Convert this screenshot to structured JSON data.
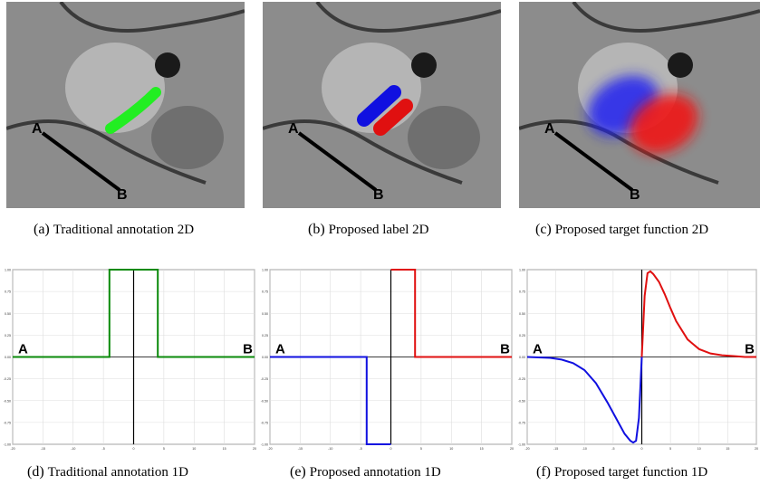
{
  "figure": {
    "top_row": [
      {
        "tag": "(a)",
        "caption": "Traditional annotation 2D",
        "point_a": "A",
        "point_b": "B"
      },
      {
        "tag": "(b)",
        "caption": "Proposed label 2D",
        "point_a": "A",
        "point_b": "B"
      },
      {
        "tag": "(c)",
        "caption": "Proposed target function 2D",
        "point_a": "A",
        "point_b": "B"
      }
    ],
    "bottom_row": [
      {
        "tag": "(d)",
        "caption": "Traditional annotation 1D",
        "point_a": "A",
        "point_b": "B"
      },
      {
        "tag": "(e)",
        "caption": "Proposed annotation 1D",
        "point_a": "A",
        "point_b": "B"
      },
      {
        "tag": "(f)",
        "caption": "Proposed target function 1D",
        "point_a": "A",
        "point_b": "B"
      }
    ]
  },
  "colors": {
    "green": "#0a8a0a",
    "blue": "#1010e0",
    "red": "#e01010",
    "annotation_green": "#22ee22"
  },
  "chart_data": [
    {
      "type": "line",
      "xlim": [
        -20,
        20
      ],
      "ylim": [
        -1,
        1
      ],
      "xticks": [
        -20,
        -15,
        -10,
        -5,
        0,
        5,
        10,
        15,
        20
      ],
      "yticks": [
        -1.0,
        -0.75,
        -0.5,
        -0.25,
        0.0,
        0.25,
        0.5,
        0.75,
        1.0
      ],
      "ytick_labels": [
        "-1.00",
        "-0.75",
        "-0.50",
        "-0.25",
        "0.00",
        "0.25",
        "0.50",
        "0.75",
        "1.00"
      ],
      "series": [
        {
          "color": "#0a8a0a",
          "x": [
            -20,
            -4,
            -4,
            4,
            4,
            20
          ],
          "y": [
            0,
            0,
            1,
            1,
            0,
            0
          ]
        }
      ]
    },
    {
      "type": "line",
      "xlim": [
        -20,
        20
      ],
      "ylim": [
        -1,
        1
      ],
      "xticks": [
        -20,
        -15,
        -10,
        -5,
        0,
        5,
        10,
        15,
        20
      ],
      "yticks": [
        -1.0,
        -0.75,
        -0.5,
        -0.25,
        0.0,
        0.25,
        0.5,
        0.75,
        1.0
      ],
      "ytick_labels": [
        "-1.00",
        "-0.75",
        "-0.50",
        "-0.25",
        "0.00",
        "0.25",
        "0.50",
        "0.75",
        "1.00"
      ],
      "series": [
        {
          "color": "#1010e0",
          "x": [
            -20,
            -4,
            -4,
            0
          ],
          "y": [
            0,
            0,
            -1,
            -1
          ]
        },
        {
          "color": "#e01010",
          "x": [
            0,
            4,
            4,
            20
          ],
          "y": [
            1,
            1,
            0,
            0
          ]
        }
      ]
    },
    {
      "type": "line",
      "xlim": [
        -20,
        20
      ],
      "ylim": [
        -1,
        1
      ],
      "xticks": [
        -20,
        -15,
        -10,
        -5,
        0,
        5,
        10,
        15,
        20
      ],
      "yticks": [
        -1.0,
        -0.75,
        -0.5,
        -0.25,
        0.0,
        0.25,
        0.5,
        0.75,
        1.0
      ],
      "ytick_labels": [
        "-1.00",
        "-0.75",
        "-0.50",
        "-0.25",
        "0.00",
        "0.25",
        "0.50",
        "0.75",
        "1.00"
      ],
      "series": [
        {
          "color": "#1010e0",
          "x": [
            -20,
            -16,
            -14,
            -12,
            -10,
            -8,
            -6,
            -4,
            -3,
            -2,
            -1.5,
            -1,
            -0.5,
            0
          ],
          "y": [
            0,
            -0.01,
            -0.03,
            -0.07,
            -0.15,
            -0.3,
            -0.52,
            -0.76,
            -0.88,
            -0.96,
            -0.98,
            -0.96,
            -0.7,
            0
          ]
        },
        {
          "color": "#e01010",
          "x": [
            0,
            0.5,
            1,
            1.5,
            2,
            3,
            4,
            5,
            6,
            8,
            10,
            12,
            14,
            16,
            18,
            20
          ],
          "y": [
            0,
            0.7,
            0.96,
            0.98,
            0.95,
            0.86,
            0.72,
            0.56,
            0.41,
            0.2,
            0.09,
            0.04,
            0.02,
            0.01,
            0,
            0
          ]
        }
      ]
    }
  ]
}
